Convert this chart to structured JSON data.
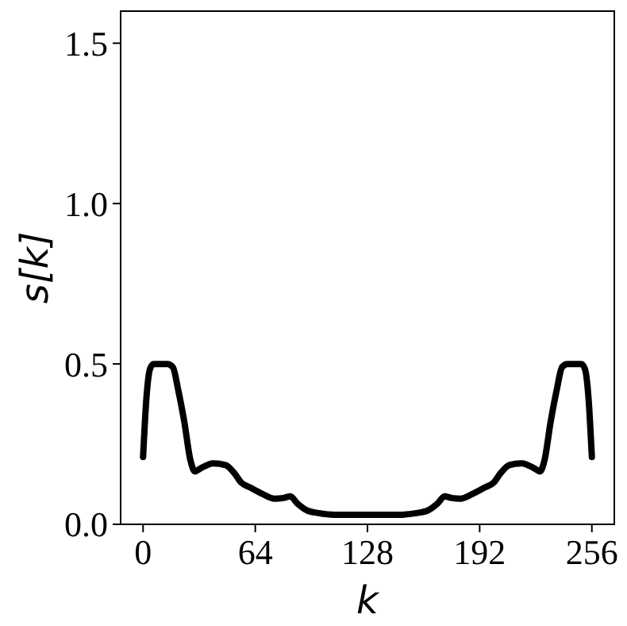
{
  "chart_data": {
    "type": "line",
    "xlabel": "k",
    "ylabel": "s[k]",
    "xlim": [
      -12.8,
      268.8
    ],
    "ylim": [
      0,
      1.6
    ],
    "xticks": [
      0,
      64,
      128,
      192,
      256
    ],
    "yticks": [
      {
        "value": 0,
        "label": "0.0"
      },
      {
        "value": 0.5,
        "label": "0.5"
      },
      {
        "value": 1,
        "label": "1.0"
      },
      {
        "value": 1.5,
        "label": "1.5"
      }
    ],
    "grid": false,
    "marker": "none",
    "line_style": "solid",
    "series": [
      {
        "color": "#000000",
        "x": [
          0,
          2,
          4,
          6,
          10,
          14,
          17,
          20,
          23.5,
          27,
          29.6,
          33,
          40,
          47,
          52,
          56,
          61,
          68,
          75,
          80,
          84,
          88,
          94,
          100,
          109,
          118,
          128,
          138,
          147,
          156,
          162,
          168,
          172,
          176,
          181,
          188,
          195,
          200,
          204,
          209,
          216,
          223,
          226.4,
          229,
          232.5,
          236,
          239,
          242,
          246,
          250,
          252,
          254,
          256
        ],
        "values": [
          0.21,
          0.4,
          0.485,
          0.5,
          0.5,
          0.5,
          0.49,
          0.42,
          0.32,
          0.2,
          0.165,
          0.175,
          0.19,
          0.185,
          0.16,
          0.13,
          0.115,
          0.095,
          0.08,
          0.082,
          0.087,
          0.065,
          0.042,
          0.035,
          0.03,
          0.03,
          0.03,
          0.03,
          0.03,
          0.035,
          0.042,
          0.065,
          0.087,
          0.082,
          0.08,
          0.095,
          0.115,
          0.13,
          0.16,
          0.185,
          0.19,
          0.175,
          0.165,
          0.2,
          0.32,
          0.42,
          0.49,
          0.5,
          0.5,
          0.5,
          0.485,
          0.4,
          0.21
        ]
      }
    ]
  }
}
